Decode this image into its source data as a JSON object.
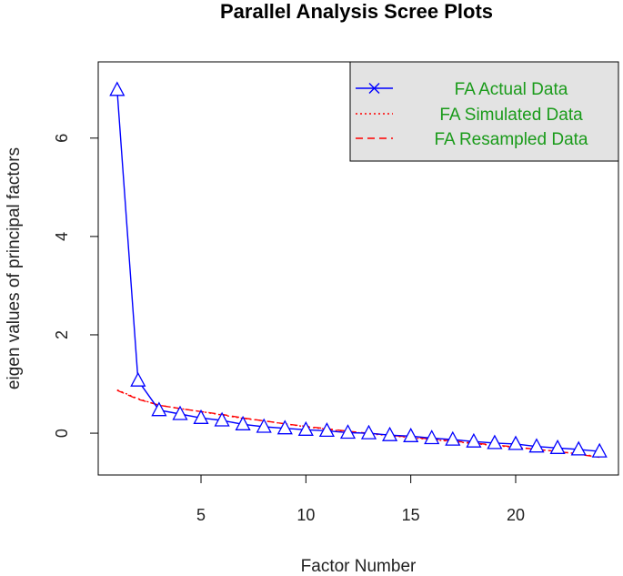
{
  "chart_data": {
    "type": "line",
    "title": "Parallel Analysis Scree Plots",
    "xlabel": "Factor Number",
    "ylabel": "eigen values of principal factors",
    "xlim": [
      0.1,
      24.9
    ],
    "ylim": [
      -0.85,
      7.55
    ],
    "xticks": [
      5,
      10,
      15,
      20
    ],
    "yticks": [
      0,
      2,
      4,
      6
    ],
    "grid": false,
    "legend": {
      "position": "top-right",
      "text_color": "#1a9b1a",
      "background": "#e3e3e3",
      "entries": [
        {
          "label": "FA  Actual Data",
          "color": "#0000ff",
          "style": "solid-x"
        },
        {
          "label": "FA  Simulated Data",
          "color": "#ff0000",
          "style": "dotted"
        },
        {
          "label": "FA  Resampled Data",
          "color": "#ff0000",
          "style": "dashed"
        }
      ]
    },
    "x": [
      1,
      2,
      3,
      4,
      5,
      6,
      7,
      8,
      9,
      10,
      11,
      12,
      13,
      14,
      15,
      16,
      17,
      18,
      19,
      20,
      21,
      22,
      23,
      24
    ],
    "series": [
      {
        "name": "FA  Actual Data",
        "color": "#0000ff",
        "style": "solid",
        "marker": "triangle",
        "values": [
          6.98,
          1.07,
          0.47,
          0.39,
          0.31,
          0.26,
          0.18,
          0.13,
          0.1,
          0.07,
          0.05,
          0.01,
          0.0,
          -0.04,
          -0.06,
          -0.1,
          -0.13,
          -0.17,
          -0.2,
          -0.22,
          -0.27,
          -0.3,
          -0.33,
          -0.37
        ]
      },
      {
        "name": "FA  Simulated Data",
        "color": "#ff0000",
        "style": "dotted",
        "values": [
          0.88,
          0.7,
          0.57,
          0.5,
          0.44,
          0.37,
          0.3,
          0.25,
          0.19,
          0.13,
          0.08,
          0.03,
          -0.01,
          -0.05,
          -0.09,
          -0.13,
          -0.17,
          -0.21,
          -0.25,
          -0.29,
          -0.33,
          -0.37,
          -0.42,
          -0.48
        ]
      },
      {
        "name": "FA  Resampled Data",
        "color": "#ff0000",
        "style": "dashed",
        "values": [
          0.87,
          0.69,
          0.57,
          0.5,
          0.44,
          0.38,
          0.31,
          0.25,
          0.19,
          0.14,
          0.09,
          0.04,
          0.0,
          -0.04,
          -0.08,
          -0.12,
          -0.16,
          -0.2,
          -0.24,
          -0.28,
          -0.33,
          -0.37,
          -0.43,
          -0.49
        ]
      }
    ]
  }
}
